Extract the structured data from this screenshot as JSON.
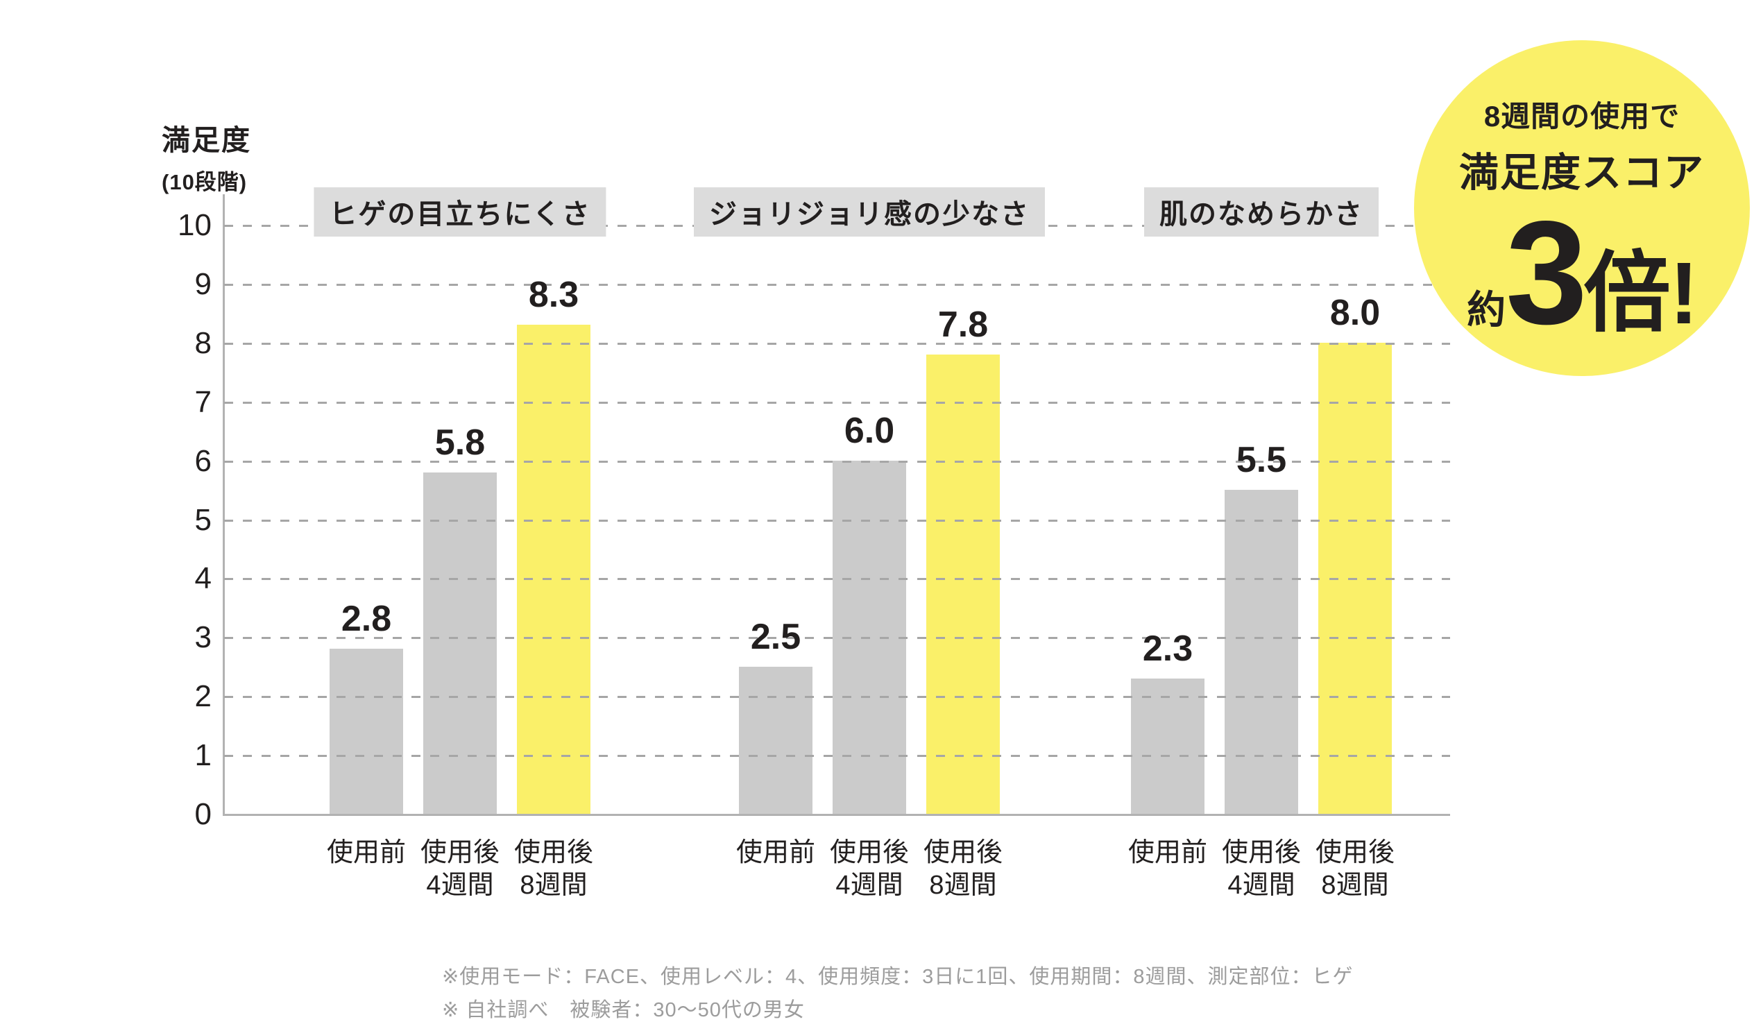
{
  "axis": {
    "title": "満足度",
    "subtitle": "(10段階)"
  },
  "chart_data": {
    "type": "bar",
    "title": "",
    "ylabel": "満足度（10段階）",
    "ylim": [
      0,
      10
    ],
    "yticks": [
      0,
      1,
      2,
      3,
      4,
      5,
      6,
      7,
      8,
      9,
      10
    ],
    "grid": true,
    "legend": false,
    "categories": [
      "使用前",
      "使用後4週間",
      "使用後8週間"
    ],
    "x_tick_lines": [
      [
        "使用前"
      ],
      [
        "使用後",
        "4週間"
      ],
      [
        "使用後",
        "8週間"
      ]
    ],
    "groups": [
      {
        "label": "ヒゲの目立ちにくさ",
        "values": [
          2.8,
          5.8,
          8.3
        ],
        "value_labels": [
          "2.8",
          "5.8",
          "8.3"
        ]
      },
      {
        "label": "ジョリジョリ感の少なさ",
        "values": [
          2.5,
          6.0,
          7.8
        ],
        "value_labels": [
          "2.5",
          "6.0",
          "7.8"
        ]
      },
      {
        "label": "肌のなめらかさ",
        "values": [
          2.3,
          5.5,
          8.0
        ],
        "value_labels": [
          "2.3",
          "5.5",
          "8.0"
        ]
      }
    ],
    "bar_colors_by_category": [
      "#CBCBCB",
      "#CBCBCB",
      "#FAF069"
    ]
  },
  "badge": {
    "line1": "8週間の使用で",
    "line2": "満足度スコア",
    "approx": "約",
    "big_number": "3",
    "big_suffix": "倍!",
    "color": "#FAF069"
  },
  "footnotes": [
    "※使用モード：FACE、使用レベル：4、使用頻度：3日に1回、使用期間：8週間、測定部位：ヒゲ",
    "※ 自社調べ　被験者：30〜50代の男女"
  ],
  "colors": {
    "bar_gray": "#CBCBCB",
    "bar_yellow": "#FAF069",
    "group_title_bg": "#DCDCDC",
    "gridline": "#A6A6A6",
    "axis_line": "#B2B2B2",
    "text": "#221F1F",
    "footnote": "#9C9C9C"
  }
}
